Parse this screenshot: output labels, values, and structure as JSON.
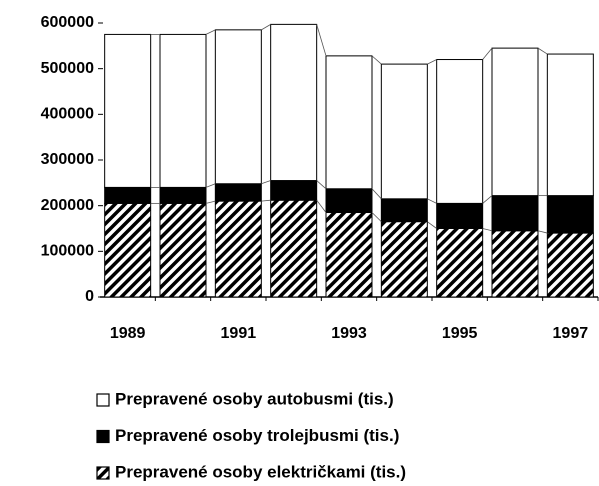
{
  "chart_data": {
    "type": "stacked_bar",
    "categories": [
      "1989",
      null,
      "1991",
      null,
      "1993",
      null,
      "1995",
      null,
      "1997"
    ],
    "series": [
      {
        "name": "Prepravené osoby električkami (tis.)",
        "color": "#000000",
        "pattern": "hatch",
        "values": [
          205000,
          205000,
          210000,
          212000,
          185000,
          165000,
          150000,
          145000,
          140000
        ]
      },
      {
        "name": "Prepravené osoby trolejbusmi (tis.)",
        "color": "#000000",
        "pattern": "solid",
        "values": [
          35000,
          35000,
          38000,
          43000,
          52000,
          50000,
          55000,
          77000,
          82000
        ]
      },
      {
        "name": "Prepravené osoby autobusmi (tis.)",
        "color": "#ffffff",
        "pattern": "solid",
        "values": [
          335000,
          335000,
          337000,
          342000,
          291000,
          295000,
          315000,
          323000,
          310000
        ]
      }
    ],
    "ylim": [
      0,
      600000
    ],
    "yticks": [
      0,
      100000,
      200000,
      300000,
      400000,
      500000,
      600000
    ]
  }
}
